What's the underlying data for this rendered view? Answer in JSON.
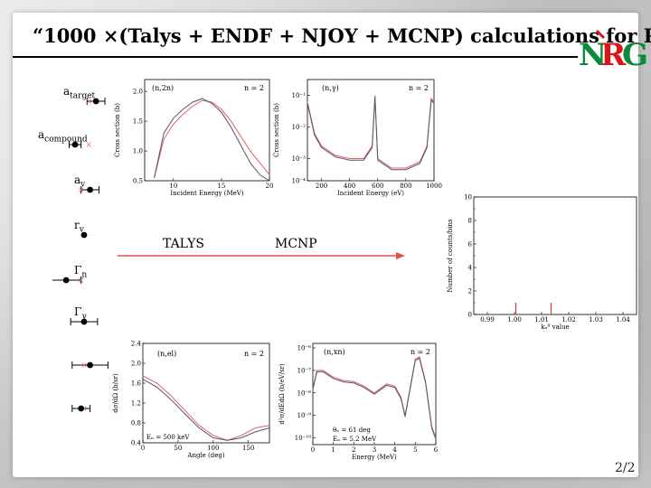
{
  "slide": {
    "title": "“1000 ×(Talys + ENDF + NJOY + MCNP) calculations for Pb”",
    "logo_text": "NRG",
    "page_number": "2/2"
  },
  "parameters": [
    {
      "label": "a",
      "sub": "target",
      "mean": 0.7,
      "err": 0.3,
      "ref": 0.58
    },
    {
      "label": "a",
      "sub": "compound",
      "mean": 0.35,
      "err": 0.2,
      "ref": 0.58
    },
    {
      "label": "a",
      "sub": "v",
      "mean": 0.6,
      "err": 0.3,
      "ref": 0.45
    },
    {
      "label": "r",
      "sub": "v",
      "mean": 0.5,
      "err": 0.0,
      "ref": 0.5
    },
    {
      "label": "Γ",
      "sub": "n",
      "mean": 0.2,
      "err": 0.5,
      "ref": 0.45
    },
    {
      "label": "Γ",
      "sub": "γ",
      "mean": 0.5,
      "err": 0.45,
      "ref": 0.5
    },
    {
      "label": "",
      "sub": "",
      "mean": 0.6,
      "err": 0.6,
      "ref": 0.5
    },
    {
      "label": "",
      "sub": "",
      "mean": 0.45,
      "err": 0.3,
      "ref": 0.5
    }
  ],
  "flow": {
    "talys_label": "TALYS",
    "mcnp_label": "MCNP",
    "colors": {
      "arrow": "#e05050",
      "curve_red": "#e06060",
      "curve_dark": "#555566"
    }
  },
  "plots": {
    "n2n": {
      "label": "(n,2n)",
      "n_label": "n = 2",
      "xlabel": "Incident Energy (MeV)",
      "ylabel": "Cross section (b)",
      "xticks": [
        "10",
        "15",
        "20"
      ],
      "yticks": [
        "0.5",
        "1.0",
        "1.5",
        "2.0"
      ],
      "xlim": [
        7,
        20
      ],
      "ylim": [
        0.5,
        2.2
      ]
    },
    "ngamma": {
      "label": "(n,γ)",
      "n_label": "n = 2",
      "xlabel": "Incident Energy (eV)",
      "ylabel": "Cross section (b)",
      "xticks": [
        "200",
        "400",
        "600",
        "800",
        "1000"
      ],
      "yticks": [
        "10⁻¹",
        "10⁻²",
        "10⁻³",
        "10⁻⁴"
      ],
      "xlim": [
        100,
        1000
      ]
    },
    "nel": {
      "label": "(n,el)",
      "n_label": "n = 2",
      "xlabel": "Angle (deg)",
      "ylabel": "dσ/dΩ (b/sr)",
      "annotation": "Eₙ = 500 keV",
      "xticks": [
        "0",
        "50",
        "100",
        "150"
      ],
      "yticks": [
        "0.4",
        "0.8",
        "1.2",
        "1.6",
        "2.0",
        "2.4"
      ],
      "xlim": [
        0,
        180
      ],
      "ylim": [
        0.4,
        2.4
      ]
    },
    "nxn": {
      "label": "(n,xn)",
      "n_label": "n = 2",
      "xlabel": "Energy (MeV)",
      "ylabel": "d²σ/dEdΩ (b/eV/sr)",
      "annotation1": "θₙ = 61 deg",
      "annotation2": "Eₙ = 5.2 MeV",
      "xticks": [
        "0",
        "1",
        "2",
        "3",
        "4",
        "5",
        "6"
      ],
      "yticks": [
        "10⁻⁶",
        "10⁻⁷",
        "10⁻⁸",
        "10⁻⁹",
        "10⁻¹⁰"
      ],
      "xlim": [
        0,
        6
      ]
    },
    "keff": {
      "xlabel": "kₑᶠᶠ value",
      "ylabel": "Number of counts/bins",
      "xticks": [
        "0.99",
        "1.00",
        "1.01",
        "1.02",
        "1.03",
        "1.04"
      ],
      "yticks": [
        "0",
        "2",
        "4",
        "6",
        "8",
        "10"
      ],
      "xlim": [
        0.985,
        1.045
      ],
      "ylim": [
        0,
        10
      ]
    }
  },
  "chart_data": [
    {
      "type": "line",
      "title": "(n,2n)",
      "xlabel": "Incident Energy (MeV)",
      "ylabel": "Cross section (b)",
      "xlim": [
        7,
        20
      ],
      "ylim": [
        0.5,
        2.2
      ],
      "series": [
        {
          "x": [
            8,
            9,
            10,
            11,
            12,
            13,
            14,
            15,
            16,
            17,
            18,
            19,
            20
          ],
          "y": [
            0.55,
            1.2,
            1.45,
            1.62,
            1.75,
            1.85,
            1.82,
            1.7,
            1.5,
            1.25,
            1.0,
            0.8,
            0.6
          ]
        },
        {
          "x": [
            8,
            9,
            10,
            11,
            12,
            13,
            14,
            15,
            16,
            17,
            18,
            19,
            20
          ],
          "y": [
            0.55,
            1.3,
            1.55,
            1.7,
            1.82,
            1.88,
            1.8,
            1.65,
            1.4,
            1.1,
            0.8,
            0.6,
            0.5
          ]
        }
      ]
    },
    {
      "type": "line",
      "title": "(n,γ)",
      "xlabel": "Incident Energy (eV)",
      "ylabel": "Cross section (b)",
      "xlim": [
        100,
        1000
      ],
      "series": [
        {
          "x": [
            100,
            150,
            200,
            300,
            400,
            500,
            560,
            580,
            600,
            700,
            800,
            900,
            950,
            980,
            1000
          ],
          "y": [
            -1.2,
            -2.2,
            -2.6,
            -2.9,
            -3.0,
            -3.0,
            -2.6,
            -1.0,
            -3.0,
            -3.3,
            -3.3,
            -3.1,
            -2.6,
            -1.1,
            -1.2
          ]
        }
      ]
    },
    {
      "type": "line",
      "title": "(n,el)",
      "xlabel": "Angle (deg)",
      "ylabel": "dσ/dΩ (b/sr)",
      "xlim": [
        0,
        180
      ],
      "ylim": [
        0.4,
        2.4
      ],
      "series": [
        {
          "x": [
            0,
            20,
            40,
            60,
            80,
            100,
            120,
            140,
            160,
            180
          ],
          "y": [
            1.75,
            1.6,
            1.35,
            1.05,
            0.75,
            0.55,
            0.45,
            0.55,
            0.7,
            0.75
          ]
        },
        {
          "x": [
            0,
            20,
            40,
            60,
            80,
            100,
            120,
            140,
            160,
            180
          ],
          "y": [
            1.68,
            1.52,
            1.27,
            0.98,
            0.7,
            0.5,
            0.45,
            0.5,
            0.62,
            0.7
          ]
        }
      ]
    },
    {
      "type": "line",
      "title": "(n,xn)",
      "xlabel": "Energy (MeV)",
      "ylabel": "d²σ/dEdΩ (b/eV/sr)",
      "xlim": [
        0,
        6
      ],
      "series": [
        {
          "x": [
            0,
            0.2,
            0.5,
            1,
            1.5,
            2,
            2.5,
            3,
            3.3,
            3.6,
            4,
            4.3,
            4.5,
            4.8,
            5.0,
            5.2,
            5.5,
            5.8,
            6
          ],
          "y": [
            -7.8,
            -7.0,
            -7.0,
            -7.3,
            -7.45,
            -7.5,
            -7.7,
            -8.0,
            -7.8,
            -7.6,
            -7.7,
            -8.2,
            -9.0,
            -7.5,
            -6.5,
            -6.4,
            -7.5,
            -9.5,
            -10
          ]
        }
      ]
    },
    {
      "type": "bar",
      "title": "",
      "xlabel": "kₑᶠᶠ value",
      "ylabel": "Number of counts/bins",
      "xlim": [
        0.985,
        1.045
      ],
      "ylim": [
        0,
        10
      ],
      "series": [
        {
          "x": [
            1.0005,
            1.0135
          ],
          "y": [
            1,
            1
          ]
        }
      ]
    }
  ]
}
